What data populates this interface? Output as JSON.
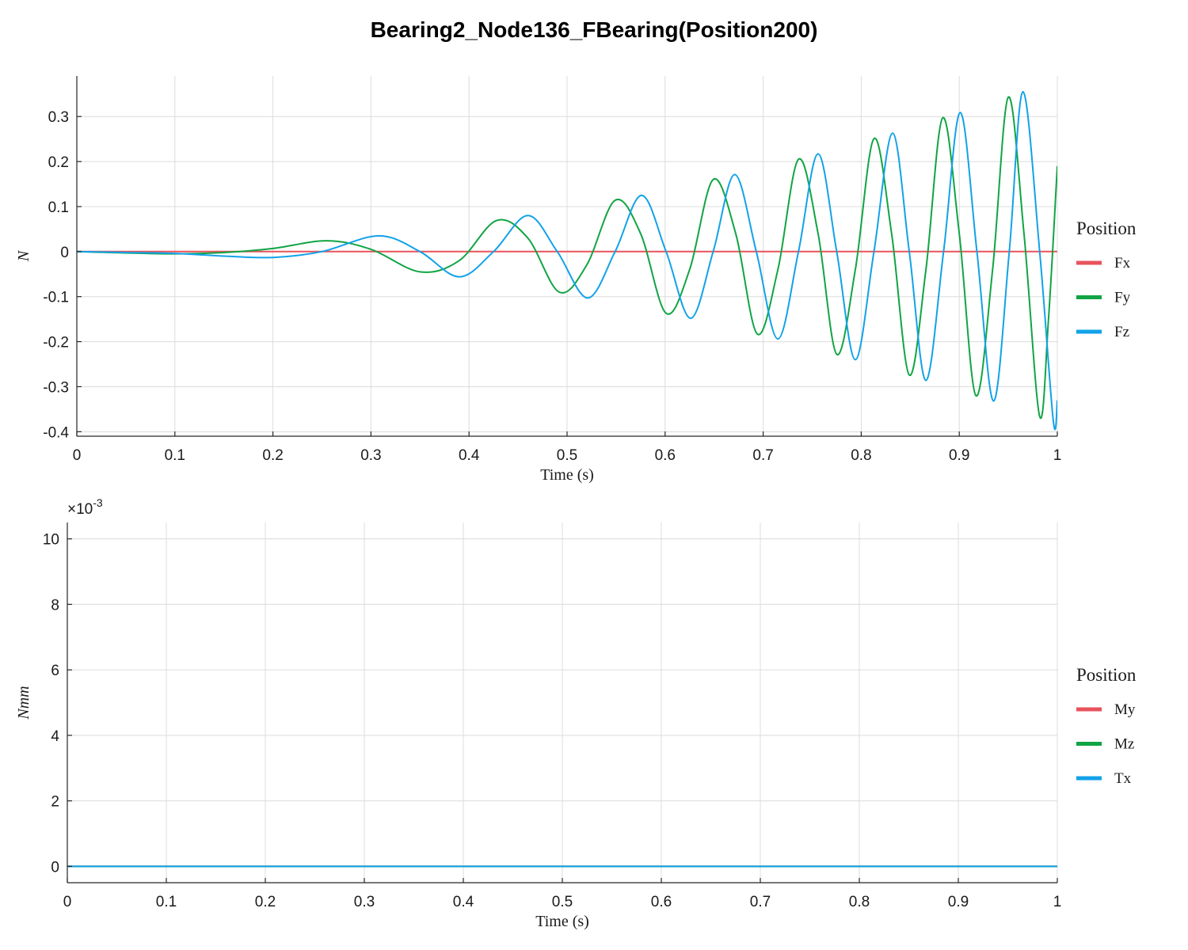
{
  "figure_title": "Bearing2_Node136_FBearing(Position200)",
  "colors": {
    "red": "#e8535c",
    "green": "#11a444",
    "blue": "#12a2e8"
  },
  "chart_data": [
    {
      "type": "line",
      "title": "",
      "xlabel": "Time (s)",
      "ylabel": "N",
      "xlim": [
        0,
        1
      ],
      "ylim": [
        -0.41,
        0.39
      ],
      "xticks": [
        0,
        0.1,
        0.2,
        0.3,
        0.4,
        0.5,
        0.6,
        0.7,
        0.8,
        0.9,
        1
      ],
      "yticks": [
        -0.4,
        -0.3,
        -0.2,
        -0.1,
        0,
        0.1,
        0.2,
        0.3
      ],
      "x_tick_labels": [
        "0",
        "0.1",
        "0.2",
        "0.3",
        "0.4",
        "0.5",
        "0.6",
        "0.7",
        "0.8",
        "0.9",
        "1"
      ],
      "y_tick_labels": [
        "-0.4",
        "-0.3",
        "-0.2",
        "-0.1",
        "0",
        "0.1",
        "0.2",
        "0.3"
      ],
      "grid": true,
      "legend": {
        "title": "Position",
        "placement": "right-outside",
        "entries": [
          "Fx",
          "Fy",
          "Fz"
        ]
      },
      "series": [
        {
          "name": "Fx",
          "color": "#e8535c",
          "x": [
            0,
            1
          ],
          "y": [
            0,
            0
          ]
        },
        {
          "name": "Fy",
          "color": "#11a444",
          "x": [
            0,
            0.05,
            0.1,
            0.15,
            0.2,
            0.255,
            0.3,
            0.35,
            0.39,
            0.428,
            0.46,
            0.492,
            0.52,
            0.549,
            0.575,
            0.601,
            0.625,
            0.649,
            0.672,
            0.694,
            0.715,
            0.736,
            0.756,
            0.775,
            0.794,
            0.813,
            0.831,
            0.849,
            0.866,
            0.883,
            0.9,
            0.917,
            0.934,
            0.95,
            0.966,
            0.982,
            0.991,
            1.0
          ],
          "y": [
            0,
            -0.003,
            -0.005,
            -0.002,
            0.007,
            0.024,
            0.005,
            -0.045,
            -0.02,
            0.069,
            0.03,
            -0.09,
            -0.03,
            0.114,
            0.04,
            -0.137,
            -0.04,
            0.16,
            0.04,
            -0.183,
            -0.04,
            0.205,
            0.04,
            -0.228,
            -0.04,
            0.251,
            0.04,
            -0.274,
            -0.04,
            0.297,
            0.04,
            -0.32,
            -0.04,
            0.343,
            0.04,
            -0.366,
            -0.15,
            0.19
          ]
        },
        {
          "name": "Fz",
          "color": "#12a2e8",
          "x": [
            0,
            0.05,
            0.1,
            0.15,
            0.2,
            0.25,
            0.308,
            0.35,
            0.39,
            0.425,
            0.46,
            0.49,
            0.521,
            0.549,
            0.576,
            0.601,
            0.626,
            0.649,
            0.671,
            0.693,
            0.715,
            0.736,
            0.756,
            0.775,
            0.794,
            0.813,
            0.832,
            0.849,
            0.866,
            0.884,
            0.901,
            0.918,
            0.935,
            0.951,
            0.965,
            0.982,
            0.996,
            1.0
          ],
          "y": [
            0,
            -0.002,
            -0.004,
            -0.01,
            -0.013,
            0.0,
            0.035,
            0.0,
            -0.056,
            0.0,
            0.08,
            0.0,
            -0.103,
            0.0,
            0.125,
            0.0,
            -0.148,
            0.0,
            0.171,
            0.0,
            -0.194,
            0.0,
            0.217,
            0.0,
            -0.24,
            0.0,
            0.263,
            0.0,
            -0.286,
            0.0,
            0.309,
            0.0,
            -0.332,
            0.0,
            0.355,
            0.0,
            -0.378,
            -0.33
          ]
        }
      ]
    },
    {
      "type": "line",
      "title": "",
      "xlabel": "Time (s)",
      "ylabel": "Nmm",
      "xlim": [
        0,
        1
      ],
      "ylim": [
        -0.0005,
        0.0105
      ],
      "y_exponent_label": "×10",
      "y_exponent_power": "-3",
      "xticks": [
        0,
        0.1,
        0.2,
        0.3,
        0.4,
        0.5,
        0.6,
        0.7,
        0.8,
        0.9,
        1
      ],
      "yticks": [
        0,
        0.002,
        0.004,
        0.006,
        0.008,
        0.01
      ],
      "x_tick_labels": [
        "0",
        "0.1",
        "0.2",
        "0.3",
        "0.4",
        "0.5",
        "0.6",
        "0.7",
        "0.8",
        "0.9",
        "1"
      ],
      "y_tick_labels": [
        "0",
        "2",
        "4",
        "6",
        "8",
        "10"
      ],
      "grid": true,
      "legend": {
        "title": "Position",
        "placement": "right-outside",
        "entries": [
          "My",
          "Mz",
          "Tx"
        ]
      },
      "series": [
        {
          "name": "My",
          "color": "#e8535c",
          "x": [
            0,
            1
          ],
          "y": [
            0,
            0
          ]
        },
        {
          "name": "Mz",
          "color": "#11a444",
          "x": [
            0,
            1
          ],
          "y": [
            0,
            0
          ]
        },
        {
          "name": "Tx",
          "color": "#12a2e8",
          "x": [
            0,
            1
          ],
          "y": [
            0,
            0
          ]
        }
      ]
    }
  ]
}
